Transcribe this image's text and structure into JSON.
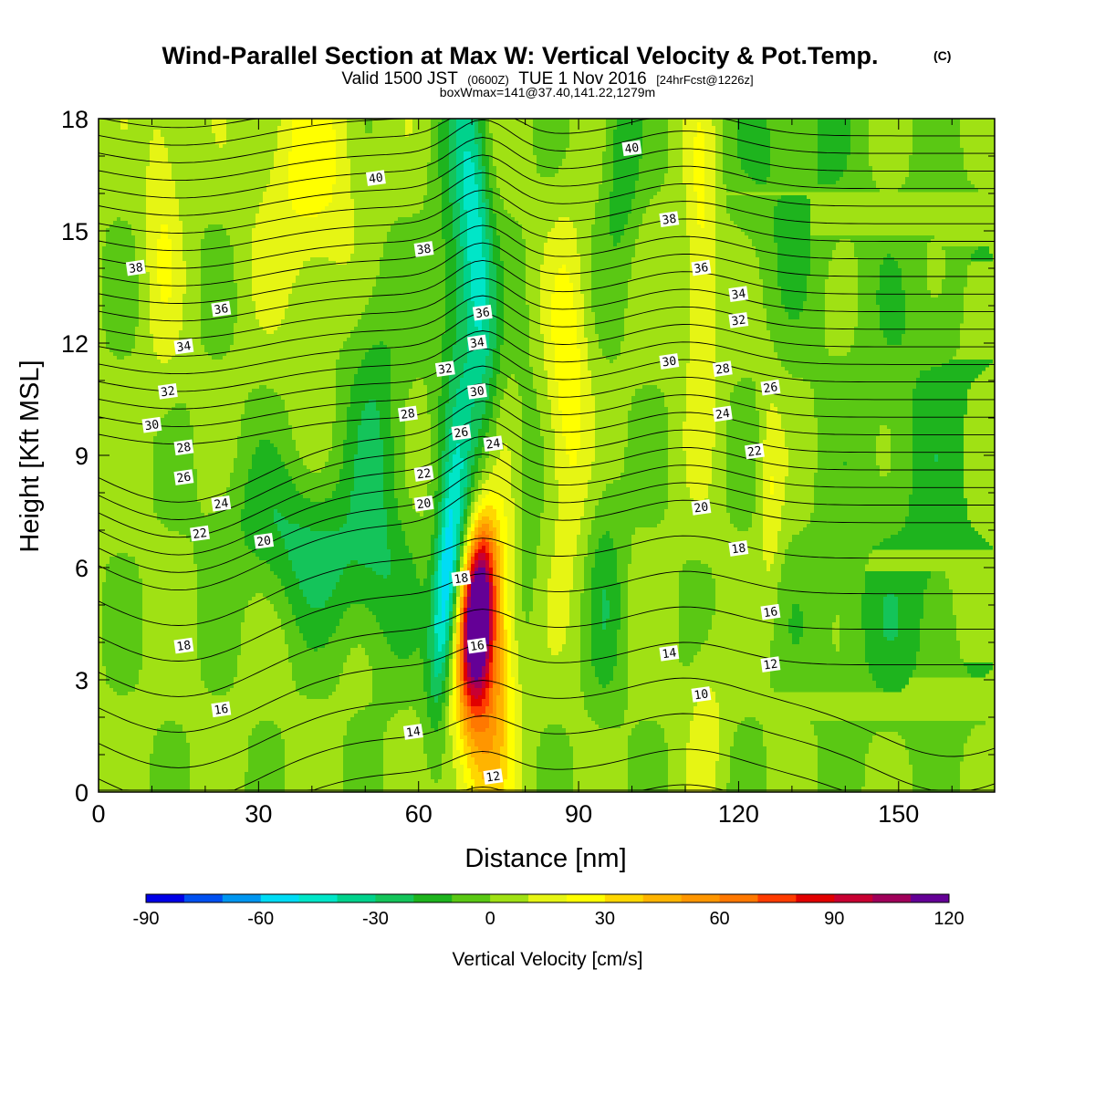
{
  "chart_data": {
    "type": "heatmap",
    "title": "Wind-Parallel Section at Max W: Vertical Velocity & Pot.Temp.",
    "title_mark": "(C)",
    "subtitle_prefix": "Valid 1500 JST",
    "subtitle_utc": "(0600Z)",
    "subtitle_date": "TUE 1 Nov 2016",
    "subtitle_forecast": "[24hrFcst@1226z]",
    "subtitle_box": "boxWmax=141@37.40,141.22,1279m",
    "xlabel": "Distance [nm]",
    "ylabel": "Height [Kft MSL]",
    "xlim": [
      0,
      168
    ],
    "ylim": [
      0,
      18
    ],
    "x_ticks": [
      "0",
      "30",
      "60",
      "90",
      "120",
      "150"
    ],
    "y_ticks": [
      "0",
      "3",
      "6",
      "9",
      "12",
      "15",
      "18"
    ],
    "colorbar": {
      "label": "Vertical Velocity [cm/s]",
      "levels": [
        -90,
        -80,
        -70,
        -60,
        -50,
        -40,
        -30,
        -20,
        -10,
        0,
        10,
        20,
        30,
        40,
        50,
        60,
        70,
        80,
        90,
        100,
        110,
        120
      ],
      "tick_labels": [
        "-90",
        "-60",
        "-30",
        "0",
        "30",
        "60",
        "90",
        "120"
      ],
      "colors": [
        "#0000e6",
        "#0050f0",
        "#0096f0",
        "#00dcf5",
        "#00e6c8",
        "#00d28c",
        "#14c45a",
        "#1eb41e",
        "#5ac814",
        "#a0e114",
        "#e6f514",
        "#ffff00",
        "#ffd700",
        "#ffb400",
        "#ff9600",
        "#ff7800",
        "#ff3c00",
        "#e10000",
        "#c80032",
        "#a0005a",
        "#640096"
      ]
    },
    "series": [
      {
        "name": "vertical_velocity_cm_s",
        "features": [
          {
            "x": 71,
            "y": 4.8,
            "peak": 125
          },
          {
            "x": 65,
            "y": 5.3,
            "peak": -60
          },
          {
            "x": 71,
            "y": 14.5,
            "peak": -40
          }
        ]
      },
      {
        "name": "potential_temperature_C",
        "contour_labels": [
          {
            "text": "40",
            "x": 52,
            "y": 16.4
          },
          {
            "text": "40",
            "x": 100,
            "y": 17.2
          },
          {
            "text": "38",
            "x": 7,
            "y": 14.0
          },
          {
            "text": "38",
            "x": 61,
            "y": 14.5
          },
          {
            "text": "38",
            "x": 107,
            "y": 15.3
          },
          {
            "text": "36",
            "x": 23,
            "y": 12.9
          },
          {
            "text": "36",
            "x": 72,
            "y": 12.8
          },
          {
            "text": "36",
            "x": 113,
            "y": 14.0
          },
          {
            "text": "34",
            "x": 16,
            "y": 11.9
          },
          {
            "text": "34",
            "x": 71,
            "y": 12.0
          },
          {
            "text": "34",
            "x": 120,
            "y": 13.3
          },
          {
            "text": "32",
            "x": 13,
            "y": 10.7
          },
          {
            "text": "32",
            "x": 65,
            "y": 11.3
          },
          {
            "text": "32",
            "x": 120,
            "y": 12.6
          },
          {
            "text": "30",
            "x": 10,
            "y": 9.8
          },
          {
            "text": "30",
            "x": 71,
            "y": 10.7
          },
          {
            "text": "30",
            "x": 107,
            "y": 11.5
          },
          {
            "text": "28",
            "x": 16,
            "y": 9.2
          },
          {
            "text": "28",
            "x": 58,
            "y": 10.1
          },
          {
            "text": "28",
            "x": 117,
            "y": 11.3
          },
          {
            "text": "26",
            "x": 16,
            "y": 8.4
          },
          {
            "text": "26",
            "x": 68,
            "y": 9.6
          },
          {
            "text": "26",
            "x": 126,
            "y": 10.8
          },
          {
            "text": "24",
            "x": 23,
            "y": 7.7
          },
          {
            "text": "24",
            "x": 74,
            "y": 9.3
          },
          {
            "text": "24",
            "x": 117,
            "y": 10.1
          },
          {
            "text": "22",
            "x": 19,
            "y": 6.9
          },
          {
            "text": "22",
            "x": 61,
            "y": 8.5
          },
          {
            "text": "22",
            "x": 123,
            "y": 9.1
          },
          {
            "text": "20",
            "x": 31,
            "y": 6.7
          },
          {
            "text": "20",
            "x": 61,
            "y": 7.7
          },
          {
            "text": "20",
            "x": 113,
            "y": 7.6
          },
          {
            "text": "18",
            "x": 16,
            "y": 3.9
          },
          {
            "text": "18",
            "x": 68,
            "y": 5.7
          },
          {
            "text": "18",
            "x": 120,
            "y": 6.5
          },
          {
            "text": "16",
            "x": 23,
            "y": 2.2
          },
          {
            "text": "16",
            "x": 71,
            "y": 3.9
          },
          {
            "text": "16",
            "x": 126,
            "y": 4.8
          },
          {
            "text": "14",
            "x": 59,
            "y": 1.6
          },
          {
            "text": "14",
            "x": 107,
            "y": 3.7
          },
          {
            "text": "12",
            "x": 74,
            "y": 0.4
          },
          {
            "text": "12",
            "x": 126,
            "y": 3.4
          },
          {
            "text": "10",
            "x": 113,
            "y": 2.6
          }
        ]
      }
    ]
  }
}
